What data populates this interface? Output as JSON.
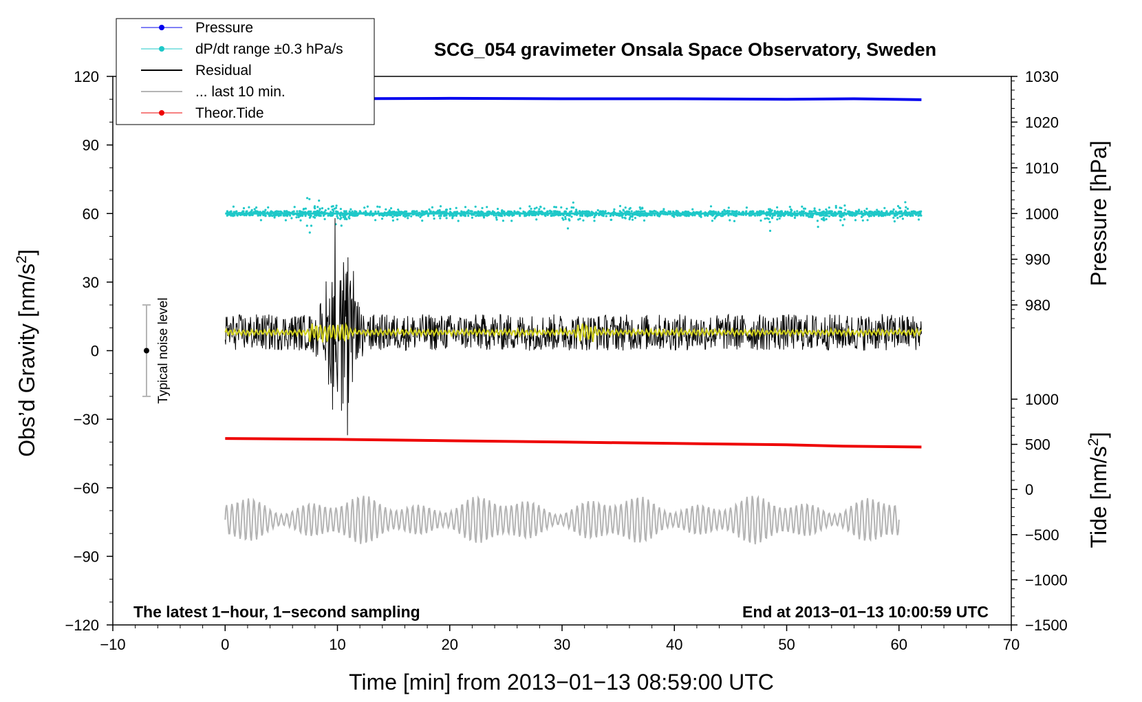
{
  "chart_data": {
    "type": "line",
    "title": "SCG_054 gravimeter Onsala Space Observatory, Sweden",
    "xlabel": "Time [min] from 2013−01−13 08:59:00 UTC",
    "ylabel_left": "Obs’d Gravity [nm/s",
    "ylabel_left_sup": "2",
    "ylabel_left_close": "]",
    "ylabel_right_pressure": "Pressure [hPa]",
    "ylabel_right_tide": "Tide [nm/s",
    "ylabel_right_tide_sup": "2",
    "ylabel_right_tide_close": "]",
    "xlim": [
      -10,
      70
    ],
    "ylim": [
      -120,
      120
    ],
    "pressure_ylim": [
      970,
      1030
    ],
    "tide_ylim": [
      -1500,
      1000
    ],
    "x_ticks": [
      "−10",
      "0",
      "10",
      "20",
      "30",
      "40",
      "50",
      "60",
      "70"
    ],
    "y_ticks": [
      "120",
      "90",
      "60",
      "30",
      "0",
      "−30",
      "−60",
      "−90",
      "−120"
    ],
    "pressure_ticks": [
      "1030",
      "1020",
      "1010",
      "1000",
      "990",
      "980"
    ],
    "tide_ticks": [
      "1000",
      "500",
      "0",
      "−500",
      "−1000",
      "−1500"
    ],
    "annotation_left": "The latest 1−hour, 1−second sampling",
    "annotation_right": "End at 2013−01−13 10:00:59 UTC",
    "noise_label": "Typical noise level",
    "noise_center": 0,
    "noise_range": [
      -20,
      20
    ],
    "noise_x": -7,
    "legend_position": "top-left",
    "legend": [
      {
        "name": "Pressure",
        "color": "#0000ee",
        "marker": true
      },
      {
        "name": "dP/dt range ±0.3 hPa/s",
        "color": "#1ec8c8",
        "marker": true
      },
      {
        "name": "Residual",
        "color": "#000000",
        "marker": false
      },
      {
        "name": "... last 10 min.",
        "color": "#b4b4b4",
        "marker": false
      },
      {
        "name": "Theor.Tide",
        "color": "#ee0000",
        "marker": true
      }
    ],
    "series": [
      {
        "name": "Pressure",
        "axis": "pressure",
        "color": "#0000ee",
        "x": [
          0,
          10,
          20,
          30,
          40,
          50,
          56,
          62
        ],
        "y": [
          1025.0,
          1025.1,
          1025.2,
          1025.1,
          1025.1,
          1025.0,
          1025.1,
          1024.9
        ]
      },
      {
        "name": "dP/dt range ±0.3 hPa/s",
        "axis": "left",
        "color": "#1ec8c8",
        "baseline": 60,
        "amplitude": 3,
        "burst_x": [
          7.5,
          8,
          9.5,
          10.5,
          30.5,
          31,
          36,
          49,
          53,
          55,
          60
        ],
        "x_range": [
          0,
          62
        ]
      },
      {
        "name": "Residual",
        "axis": "left",
        "color": "#000000",
        "baseline": 8,
        "amplitude": 10,
        "x_range": [
          0,
          62
        ],
        "quake_window": [
          7.5,
          13
        ],
        "quake_peak": [
          58,
          -37
        ]
      },
      {
        "name": "Residual (smoothed)",
        "axis": "left",
        "color": "#d2d21e",
        "baseline": 8,
        "amplitude": 1.5,
        "x_range": [
          0,
          62
        ]
      },
      {
        "name": "Theor.Tide",
        "axis": "tide",
        "color": "#ee0000",
        "x": [
          0,
          10,
          20,
          30,
          40,
          50,
          55,
          62
        ],
        "y": [
          565,
          555,
          540,
          525,
          510,
          495,
          480,
          470
        ]
      },
      {
        "name": "... last 10 min.",
        "axis": "left",
        "color": "#b4b4b4",
        "baseline": -74,
        "amplitude": 9,
        "x_range": [
          0,
          60
        ]
      }
    ]
  }
}
